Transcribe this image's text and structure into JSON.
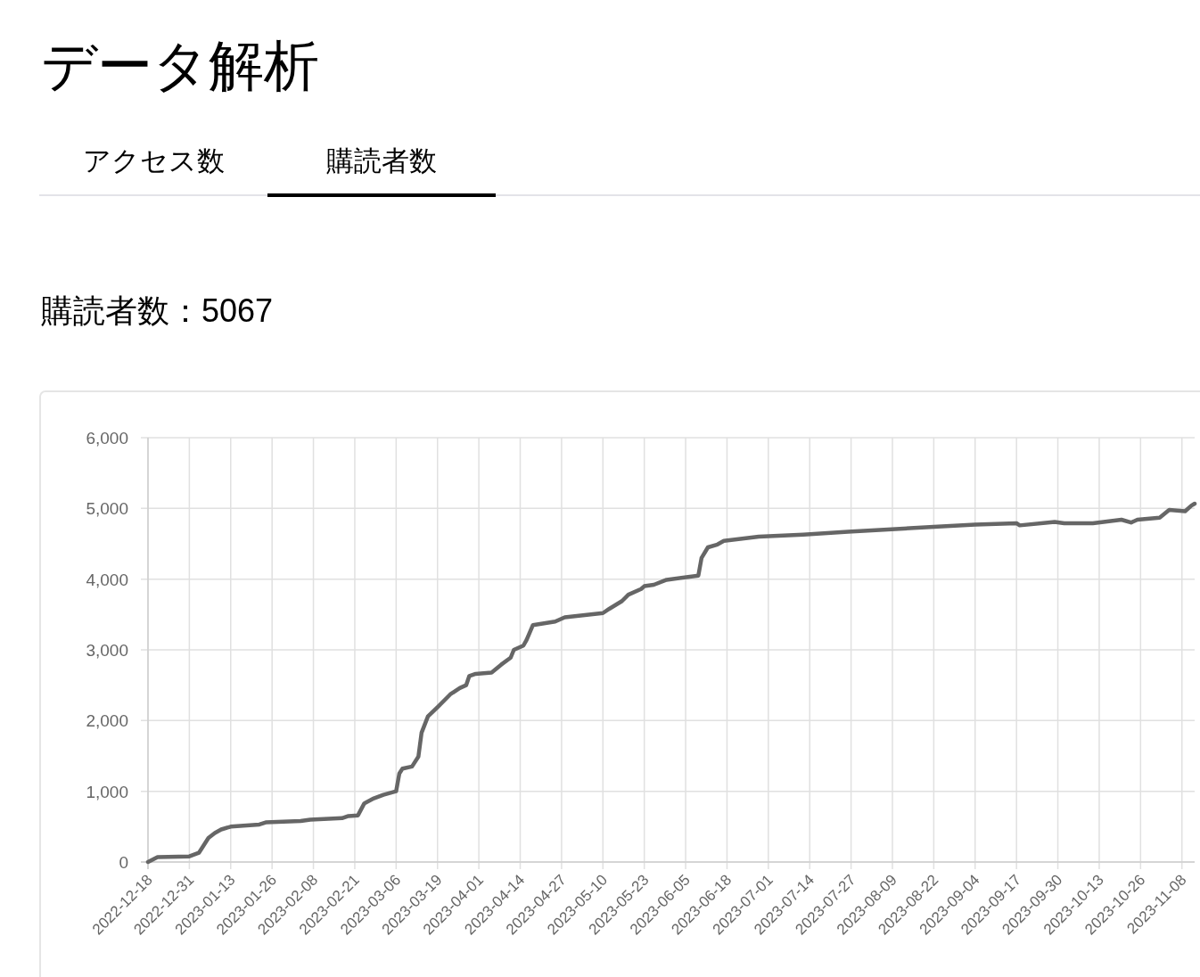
{
  "chart_data": {
    "type": "line",
    "title": "データ解析",
    "subtitle": "購読者数：5067",
    "annotations": [
      "アクセス数",
      "購読者数"
    ],
    "color": "#666666",
    "marker": "none",
    "line_style": "solid",
    "grid": true,
    "legend": false,
    "x": [
      "2022-12-18",
      "2022-12-21",
      "2022-12-31",
      "2023-01-03",
      "2023-01-06",
      "2023-01-08",
      "2023-01-10",
      "2023-01-13",
      "2023-01-22",
      "2023-01-24",
      "2023-02-04",
      "2023-02-07",
      "2023-02-17",
      "2023-02-19",
      "2023-02-22",
      "2023-02-24",
      "2023-02-27",
      "2023-03-02",
      "2023-03-06",
      "2023-03-07",
      "2023-03-08",
      "2023-03-11",
      "2023-03-13",
      "2023-03-14",
      "2023-03-16",
      "2023-03-19",
      "2023-03-23",
      "2023-03-26",
      "2023-03-28",
      "2023-03-29",
      "2023-03-31",
      "2023-04-05",
      "2023-04-08",
      "2023-04-11",
      "2023-04-12",
      "2023-04-15",
      "2023-04-16",
      "2023-04-18",
      "2023-04-25",
      "2023-04-28",
      "2023-05-10",
      "2023-05-12",
      "2023-05-16",
      "2023-05-18",
      "2023-05-22",
      "2023-05-23",
      "2023-05-26",
      "2023-05-30",
      "2023-06-09",
      "2023-06-10",
      "2023-06-12",
      "2023-06-15",
      "2023-06-17",
      "2023-06-28",
      "2023-07-12",
      "2023-07-26",
      "2023-08-22",
      "2023-09-04",
      "2023-09-17",
      "2023-09-18",
      "2023-09-29",
      "2023-10-02",
      "2023-10-11",
      "2023-10-20",
      "2023-10-23",
      "2023-10-25",
      "2023-11-01",
      "2023-11-04",
      "2023-11-09",
      "2023-11-11",
      "2023-11-12"
    ],
    "values": [
      0,
      70,
      80,
      130,
      340,
      410,
      460,
      500,
      530,
      560,
      580,
      600,
      620,
      650,
      660,
      830,
      900,
      950,
      1000,
      1250,
      1320,
      1350,
      1490,
      1830,
      2060,
      2190,
      2370,
      2460,
      2500,
      2630,
      2660,
      2680,
      2790,
      2890,
      3000,
      3060,
      3140,
      3350,
      3400,
      3460,
      3520,
      3580,
      3690,
      3780,
      3860,
      3900,
      3920,
      3990,
      4050,
      4300,
      4450,
      4490,
      4540,
      4600,
      4630,
      4670,
      4740,
      4770,
      4790,
      4760,
      4810,
      4790,
      4790,
      4840,
      4800,
      4840,
      4870,
      4980,
      4960,
      5040,
      5067
    ],
    "xlim": [
      "2022-12-18",
      "2023-11-12"
    ],
    "xticks": [
      "2022-12-18",
      "2022-12-31",
      "2023-01-13",
      "2023-01-26",
      "2023-02-08",
      "2023-02-21",
      "2023-03-06",
      "2023-03-19",
      "2023-04-01",
      "2023-04-14",
      "2023-04-27",
      "2023-05-10",
      "2023-05-23",
      "2023-06-05",
      "2023-06-18",
      "2023-07-01",
      "2023-07-14",
      "2023-07-27",
      "2023-08-09",
      "2023-08-22",
      "2023-09-04",
      "2023-09-17",
      "2023-09-30",
      "2023-10-13",
      "2023-10-26",
      "2023-11-08"
    ],
    "ylim": [
      0,
      6000
    ],
    "yticks": [
      {
        "value": 0,
        "label": "0"
      },
      {
        "value": 1000,
        "label": "1,000"
      },
      {
        "value": 2000,
        "label": "2,000"
      },
      {
        "value": 3000,
        "label": "3,000"
      },
      {
        "value": 4000,
        "label": "4,000"
      },
      {
        "value": 5000,
        "label": "5,000"
      },
      {
        "value": 6000,
        "label": "6,000"
      }
    ]
  }
}
